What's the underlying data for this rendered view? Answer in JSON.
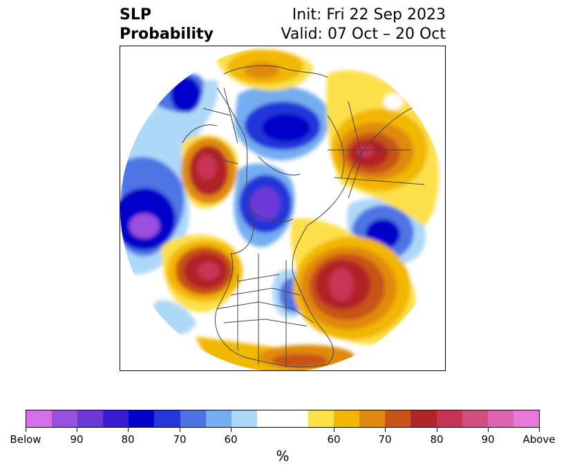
{
  "title": {
    "left_line1": "SLP",
    "left_line2": "Probability",
    "right_line1": "Init: Fri 22 Sep 2023",
    "right_line2": "Valid: 07 Oct – 20 Oct"
  },
  "colorbar": {
    "unit": "%",
    "tick_labels": [
      "Below",
      "90",
      "80",
      "70",
      "60",
      "60",
      "70",
      "80",
      "90",
      "Above"
    ],
    "below_colors": [
      "#d670e8",
      "#9a50de",
      "#6c38d8",
      "#3b1cd2",
      "#0000c8",
      "#2436d8",
      "#4e74e4",
      "#74aef0",
      "#aed8f8"
    ],
    "neutral_color": "#ffffff",
    "above_colors": [
      "#fde04a",
      "#f2b704",
      "#e08a0e",
      "#c85218",
      "#b02428",
      "#c63454",
      "#d04e7e",
      "#dc64ae",
      "#ea78dc"
    ]
  },
  "map": {
    "projection": "north-polar-stereographic",
    "background": "#ffffff",
    "land_outline_color": "#444444",
    "anomalies": [
      {
        "sign": "below",
        "level": 90,
        "region": "north pacific west"
      },
      {
        "sign": "below",
        "level": 80,
        "region": "arctic ocean east"
      },
      {
        "sign": "below",
        "level": 80,
        "region": "arctic central"
      },
      {
        "sign": "below",
        "level": 80,
        "region": "north atlantic east"
      },
      {
        "sign": "below",
        "level": 70,
        "region": "north pacific north"
      },
      {
        "sign": "below",
        "level": 60,
        "region": "central north america"
      },
      {
        "sign": "above",
        "level": 90,
        "region": "east asia"
      },
      {
        "sign": "above",
        "level": 90,
        "region": "west siberia"
      },
      {
        "sign": "above",
        "level": 90,
        "region": "gulf of alaska"
      },
      {
        "sign": "above",
        "level": 90,
        "region": "north atlantic west"
      },
      {
        "sign": "above",
        "level": 60,
        "region": "europe north"
      },
      {
        "sign": "above",
        "level": 60,
        "region": "southern united states"
      }
    ]
  }
}
